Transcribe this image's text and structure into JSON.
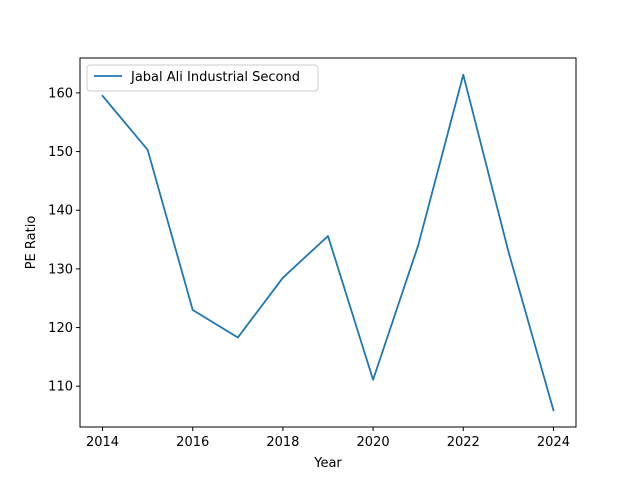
{
  "chart_data": {
    "type": "line",
    "x": [
      2014,
      2015,
      2016,
      2017,
      2018,
      2019,
      2020,
      2021,
      2022,
      2023,
      2024
    ],
    "series": [
      {
        "name": "Jabal Ali Industrial Second",
        "values": [
          159.5,
          150.3,
          123.0,
          118.3,
          128.5,
          135.6,
          111.1,
          134.0,
          163.1,
          133.0,
          105.9
        ],
        "color": "#1f77b4"
      }
    ],
    "xlabel": "Year",
    "ylabel": "PE Ratio",
    "xlim": [
      2013.5,
      2024.5
    ],
    "ylim": [
      103.05,
      165.95
    ],
    "xticks": [
      "2014",
      "2016",
      "2018",
      "2020",
      "2022",
      "2024"
    ],
    "yticks": [
      "110",
      "120",
      "130",
      "140",
      "150",
      "160"
    ],
    "grid": false,
    "legend_position": "top-left"
  }
}
